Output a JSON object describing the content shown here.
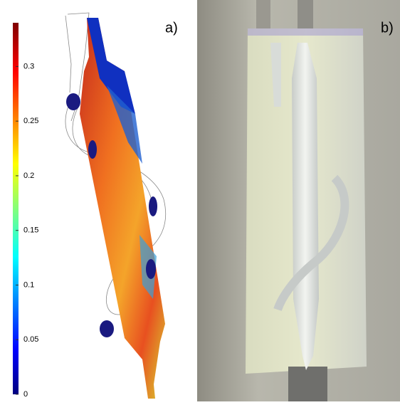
{
  "panel_a": {
    "label": "a)",
    "colorbar": {
      "lim": [
        0,
        0.34
      ],
      "ticks": [
        0,
        0.05,
        0.1,
        0.15,
        0.2,
        0.25,
        0.3
      ]
    }
  },
  "panel_b": {
    "label": "b)"
  }
}
